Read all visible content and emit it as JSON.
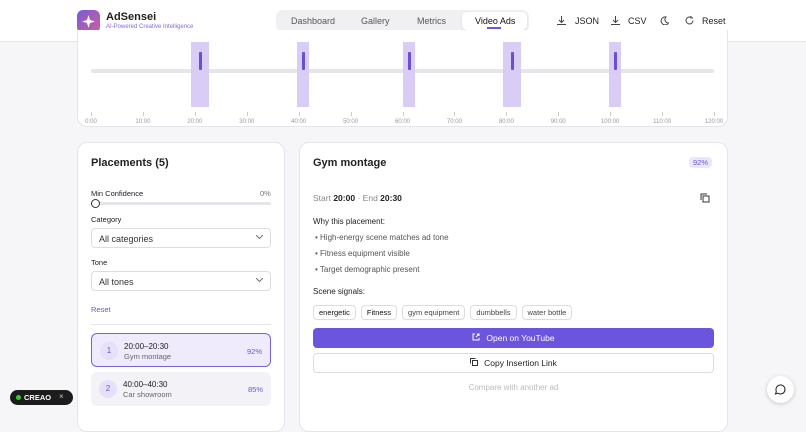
{
  "header": {
    "brand": "AdSensei",
    "tagline": "AI-Powered Creative Intelligence",
    "nav": [
      "Dashboard",
      "Gallery",
      "Metrics",
      "Video Ads"
    ],
    "actions": [
      "JSON",
      "CSV",
      "Reset"
    ]
  },
  "timeline": {
    "ticks": [
      "0:00",
      "10:00",
      "20:00",
      "30:00",
      "40:00",
      "50:00",
      "60:00",
      "70:00",
      "80:00",
      "90:00",
      "100:00",
      "110:00",
      "120:00"
    ]
  },
  "filters": {
    "title": "Placements (5)",
    "min_confidence_label": "Min Confidence",
    "min_confidence_value": "0%",
    "category_label": "Category",
    "category_value": "All categories",
    "tone_label": "Tone",
    "tone_value": "All tones",
    "reset": "Reset"
  },
  "placements": [
    {
      "index": "1",
      "time": "20:00–20:30",
      "name": "Gym montage",
      "confidence": "92%"
    },
    {
      "index": "2",
      "time": "40:00–40:30",
      "name": "Car showroom",
      "confidence": "85%"
    }
  ],
  "detail": {
    "title": "Gym montage",
    "confidence": "92%",
    "start_label": "Start",
    "start": "20:00",
    "end_label": "End",
    "end": "20:30",
    "why_title": "Why this placement:",
    "reasons": [
      "High-energy scene matches ad tone",
      "Fitness equipment visible",
      "Target demographic present"
    ],
    "signals_title": "Scene signals:",
    "signals": [
      "energetic",
      "Fitness",
      "gym equipment",
      "dumbbells",
      "water bottle"
    ],
    "open_button": "Open on YouTube",
    "copy_button": "Copy Insertion Link",
    "compare": "Compare with another ad"
  },
  "badge": "CREAO"
}
